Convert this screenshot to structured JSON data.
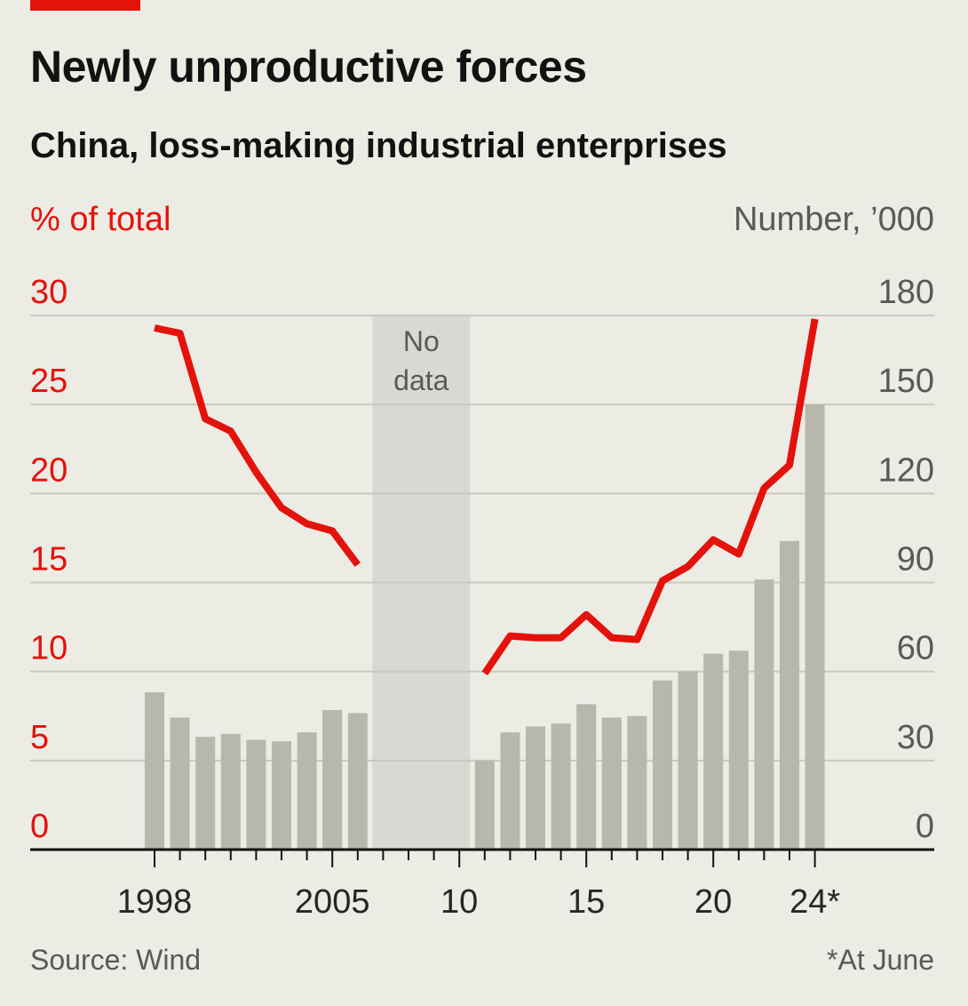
{
  "header": {
    "title": "Newly unproductive forces",
    "subtitle": "China, loss-making industrial enterprises",
    "left_unit": "% of total",
    "right_unit": "Number, ’000"
  },
  "footer": {
    "source": "Source: Wind",
    "note": "*At June"
  },
  "colors": {
    "accent": "#e3120b",
    "bars": "#b7b7ab",
    "nodata_band": "#d9d9d4",
    "grid": "#c9c9c2",
    "axis": "#121212"
  },
  "chart_data": {
    "type": "bar+line",
    "x_range": [
      1998,
      2024
    ],
    "x_ticks": [
      {
        "year": 1998,
        "label": "1998"
      },
      {
        "year": 2005,
        "label": "2005"
      },
      {
        "year": 2010,
        "label": "10"
      },
      {
        "year": 2015,
        "label": "15"
      },
      {
        "year": 2020,
        "label": "20"
      },
      {
        "year": 2024,
        "label": "24*"
      }
    ],
    "y_left": {
      "range": [
        0,
        30
      ],
      "ticks": [
        "0",
        "5",
        "10",
        "15",
        "20",
        "25",
        "30"
      ]
    },
    "y_right": {
      "range": [
        0,
        180
      ],
      "ticks": [
        "0",
        "30",
        "60",
        "90",
        "120",
        "150",
        "180"
      ]
    },
    "no_data": {
      "from": 2007,
      "to": 2010,
      "label_lines": [
        "No",
        "data"
      ]
    },
    "bars_number_thousands": [
      {
        "x": 1998,
        "y": 53
      },
      {
        "x": 1999,
        "y": 44.5
      },
      {
        "x": 2000,
        "y": 38
      },
      {
        "x": 2001,
        "y": 39
      },
      {
        "x": 2002,
        "y": 37
      },
      {
        "x": 2003,
        "y": 36.5
      },
      {
        "x": 2004,
        "y": 39.5
      },
      {
        "x": 2005,
        "y": 47
      },
      {
        "x": 2006,
        "y": 46
      },
      {
        "x": 2011,
        "y": 30
      },
      {
        "x": 2012,
        "y": 39.5
      },
      {
        "x": 2013,
        "y": 41.5
      },
      {
        "x": 2014,
        "y": 42.5
      },
      {
        "x": 2015,
        "y": 49
      },
      {
        "x": 2016,
        "y": 44.5
      },
      {
        "x": 2017,
        "y": 45
      },
      {
        "x": 2018,
        "y": 57
      },
      {
        "x": 2019,
        "y": 60
      },
      {
        "x": 2020,
        "y": 66
      },
      {
        "x": 2021,
        "y": 67
      },
      {
        "x": 2022,
        "y": 91
      },
      {
        "x": 2023,
        "y": 104
      },
      {
        "x": 2024,
        "y": 150
      }
    ],
    "line_percent_segments": [
      [
        {
          "x": 1998,
          "y": 29.3
        },
        {
          "x": 1999,
          "y": 29.0
        },
        {
          "x": 2000,
          "y": 24.2
        },
        {
          "x": 2001,
          "y": 23.5
        },
        {
          "x": 2002,
          "y": 21.2
        },
        {
          "x": 2003,
          "y": 19.2
        },
        {
          "x": 2004,
          "y": 18.3
        },
        {
          "x": 2005,
          "y": 17.9
        },
        {
          "x": 2006,
          "y": 16.0
        }
      ],
      [
        {
          "x": 2011,
          "y": 9.9
        },
        {
          "x": 2012,
          "y": 12.0
        },
        {
          "x": 2013,
          "y": 11.9
        },
        {
          "x": 2014,
          "y": 11.9
        },
        {
          "x": 2015,
          "y": 13.2
        },
        {
          "x": 2016,
          "y": 11.9
        },
        {
          "x": 2017,
          "y": 11.8
        },
        {
          "x": 2018,
          "y": 15.1
        },
        {
          "x": 2019,
          "y": 15.9
        },
        {
          "x": 2020,
          "y": 17.4
        },
        {
          "x": 2021,
          "y": 16.6
        },
        {
          "x": 2022,
          "y": 20.3
        },
        {
          "x": 2023,
          "y": 21.6
        },
        {
          "x": 2024,
          "y": 29.8
        }
      ]
    ]
  }
}
